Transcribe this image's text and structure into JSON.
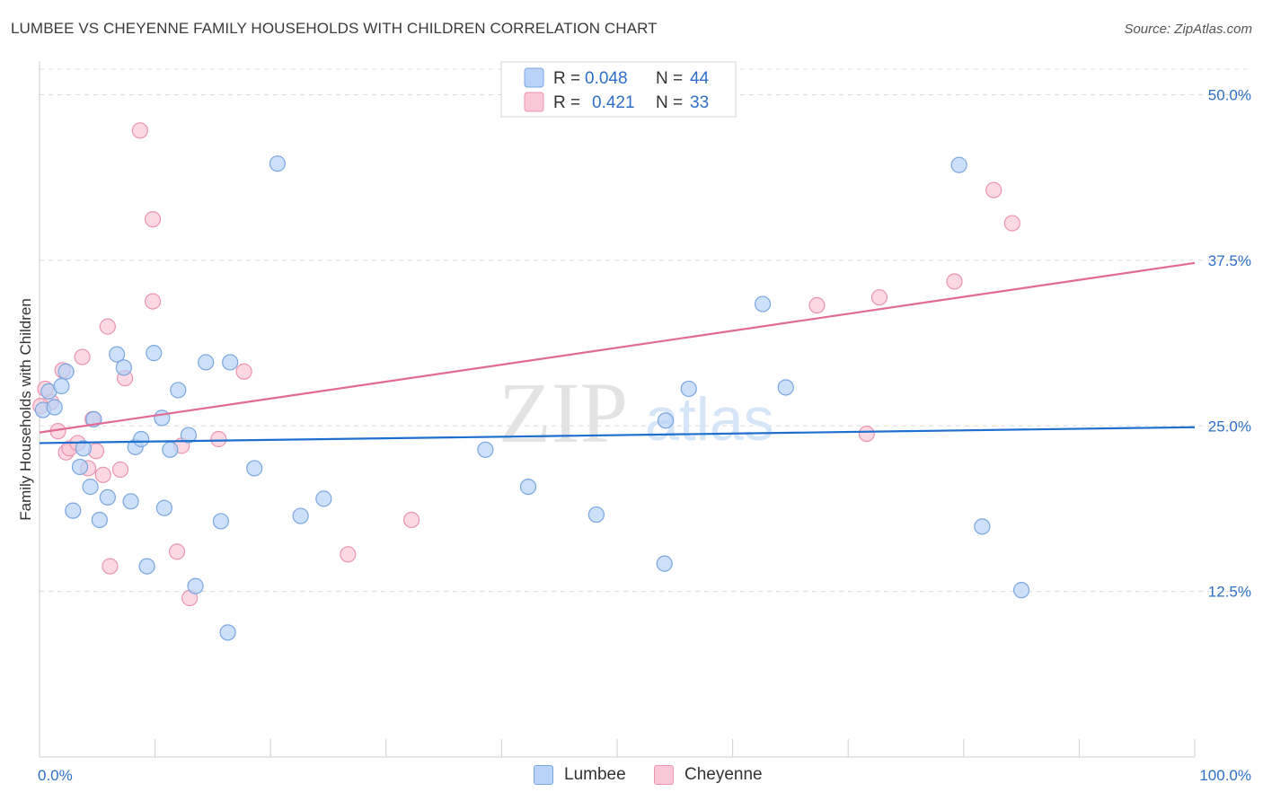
{
  "title": "LUMBEE VS CHEYENNE FAMILY HOUSEHOLDS WITH CHILDREN CORRELATION CHART",
  "source": "Source: ZipAtlas.com",
  "watermark": {
    "zip": "ZIP",
    "atlas": "atlas"
  },
  "colors": {
    "lumbee_fill": "#b8d3f7",
    "lumbee_stroke": "#7aa6e0",
    "lumbee_line": "#1f6fcf",
    "cheyenne_fill": "#f9c7d6",
    "cheyenne_stroke": "#ec94b0",
    "cheyenne_line": "#e06b97",
    "value_text": "#2f6fc7",
    "grid": "#dcdcdc"
  },
  "legend": {
    "rows": [
      {
        "r_label": "R =",
        "r_value": "0.048",
        "n_label": "N =",
        "n_value": "44"
      },
      {
        "r_label": "R =",
        "r_value": "0.421",
        "n_label": "N =",
        "n_value": "33"
      }
    ]
  },
  "chart_data": {
    "type": "scatter",
    "title": "LUMBEE VS CHEYENNE FAMILY HOUSEHOLDS WITH CHILDREN CORRELATION CHART",
    "xlabel": "",
    "ylabel": "Family Households with Children",
    "xlim": [
      0,
      100
    ],
    "ylim": [
      0,
      52
    ],
    "x_tick_labels": [
      "0.0%",
      "100.0%"
    ],
    "y_ticks": [
      12.5,
      25.0,
      37.5,
      50.0
    ],
    "y_tick_labels": [
      "12.5%",
      "25.0%",
      "37.5%",
      "50.0%"
    ],
    "grid": "horizontal dashed",
    "legend_placement": "top-center and bottom",
    "series": [
      {
        "name": "Lumbee",
        "r": 0.048,
        "n": 44,
        "trend": {
          "x": [
            0,
            100
          ],
          "y": [
            23.7,
            24.9
          ]
        },
        "points": [
          [
            0.3,
            26.2
          ],
          [
            0.8,
            27.6
          ],
          [
            1.3,
            26.4
          ],
          [
            1.9,
            28.0
          ],
          [
            2.3,
            29.1
          ],
          [
            2.9,
            18.6
          ],
          [
            3.5,
            21.9
          ],
          [
            3.8,
            23.3
          ],
          [
            4.4,
            20.4
          ],
          [
            4.7,
            25.5
          ],
          [
            5.2,
            17.9
          ],
          [
            5.9,
            19.6
          ],
          [
            6.7,
            30.4
          ],
          [
            7.3,
            29.4
          ],
          [
            7.9,
            19.3
          ],
          [
            8.3,
            23.4
          ],
          [
            8.8,
            24.0
          ],
          [
            9.3,
            14.4
          ],
          [
            9.9,
            30.5
          ],
          [
            10.6,
            25.6
          ],
          [
            10.8,
            18.8
          ],
          [
            11.3,
            23.2
          ],
          [
            12.0,
            27.7
          ],
          [
            12.9,
            24.3
          ],
          [
            13.5,
            12.9
          ],
          [
            14.4,
            29.8
          ],
          [
            15.7,
            17.8
          ],
          [
            16.3,
            9.4
          ],
          [
            16.5,
            29.8
          ],
          [
            18.6,
            21.8
          ],
          [
            20.6,
            44.8
          ],
          [
            22.6,
            18.2
          ],
          [
            24.6,
            19.5
          ],
          [
            38.6,
            23.2
          ],
          [
            42.3,
            20.4
          ],
          [
            48.2,
            18.3
          ],
          [
            54.1,
            14.6
          ],
          [
            54.2,
            25.4
          ],
          [
            56.2,
            27.8
          ],
          [
            62.6,
            34.2
          ],
          [
            64.6,
            27.9
          ],
          [
            79.6,
            44.7
          ],
          [
            81.6,
            17.4
          ],
          [
            85.0,
            12.6
          ]
        ]
      },
      {
        "name": "Cheyenne",
        "r": 0.421,
        "n": 33,
        "trend": {
          "x": [
            0,
            100
          ],
          "y": [
            24.5,
            37.3
          ]
        },
        "points": [
          [
            0.5,
            27.8
          ],
          [
            1.0,
            26.8
          ],
          [
            1.6,
            24.6
          ],
          [
            2.0,
            29.2
          ],
          [
            2.3,
            23.0
          ],
          [
            2.6,
            23.3
          ],
          [
            3.3,
            23.7
          ],
          [
            3.7,
            30.2
          ],
          [
            4.2,
            21.8
          ],
          [
            4.6,
            25.5
          ],
          [
            4.9,
            23.1
          ],
          [
            5.5,
            21.3
          ],
          [
            5.9,
            32.5
          ],
          [
            6.1,
            14.4
          ],
          [
            7.0,
            21.7
          ],
          [
            7.4,
            28.6
          ],
          [
            8.7,
            47.3
          ],
          [
            9.8,
            40.6
          ],
          [
            9.8,
            34.4
          ],
          [
            12.3,
            23.5
          ],
          [
            11.9,
            15.5
          ],
          [
            13.0,
            12.0
          ],
          [
            15.5,
            24.0
          ],
          [
            17.7,
            29.1
          ],
          [
            26.7,
            15.3
          ],
          [
            32.2,
            17.9
          ],
          [
            67.3,
            34.1
          ],
          [
            71.6,
            24.4
          ],
          [
            72.7,
            34.7
          ],
          [
            79.2,
            35.9
          ],
          [
            82.6,
            42.8
          ],
          [
            84.2,
            40.3
          ],
          [
            0.1,
            26.5
          ]
        ]
      }
    ]
  },
  "bottom_legend": [
    {
      "label": "Lumbee"
    },
    {
      "label": "Cheyenne"
    }
  ]
}
